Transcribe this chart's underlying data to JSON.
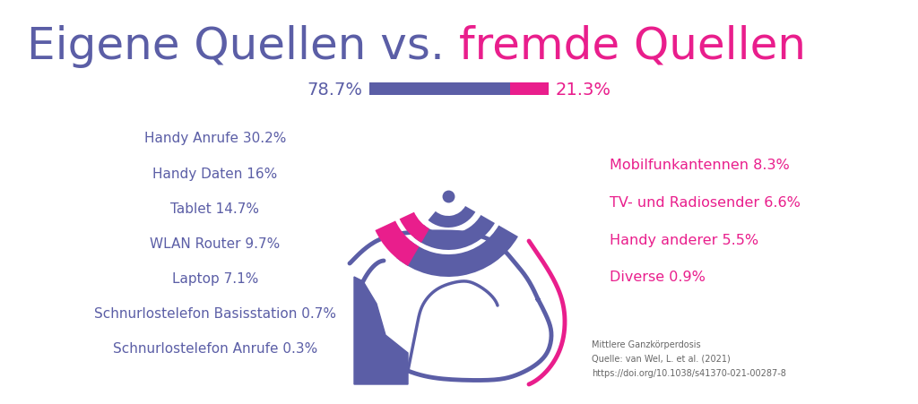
{
  "title_part1": "Eigene Quellen vs. ",
  "title_part2": "fremde Quellen",
  "color_blue": "#5B5EA6",
  "color_pink": "#E91E8C",
  "pct_own": "78.7%",
  "pct_foreign": "21.3%",
  "own_value": 78.7,
  "foreign_value": 21.3,
  "left_labels": [
    "Handy Anrufe 30.2%",
    "Handy Daten 16%",
    "Tablet 14.7%",
    "WLAN Router 9.7%",
    "Laptop 7.1%",
    "Schnurlostelefon Basisstation 0.7%",
    "Schnurlostelefon Anrufe 0.3%"
  ],
  "right_labels": [
    "Mobilfunkantennen 8.3%",
    "TV- und Radiosender 6.6%",
    "Handy anderer 5.5%",
    "Diverse 0.9%"
  ],
  "citation_line1": "Mittlere Ganzkörperdosis",
  "citation_line2": "Quelle: van Wel, L. et al. (2021)",
  "citation_line3": "https://doi.org/10.1038/s41370-021-00287-8",
  "background_color": "#FFFFFF"
}
